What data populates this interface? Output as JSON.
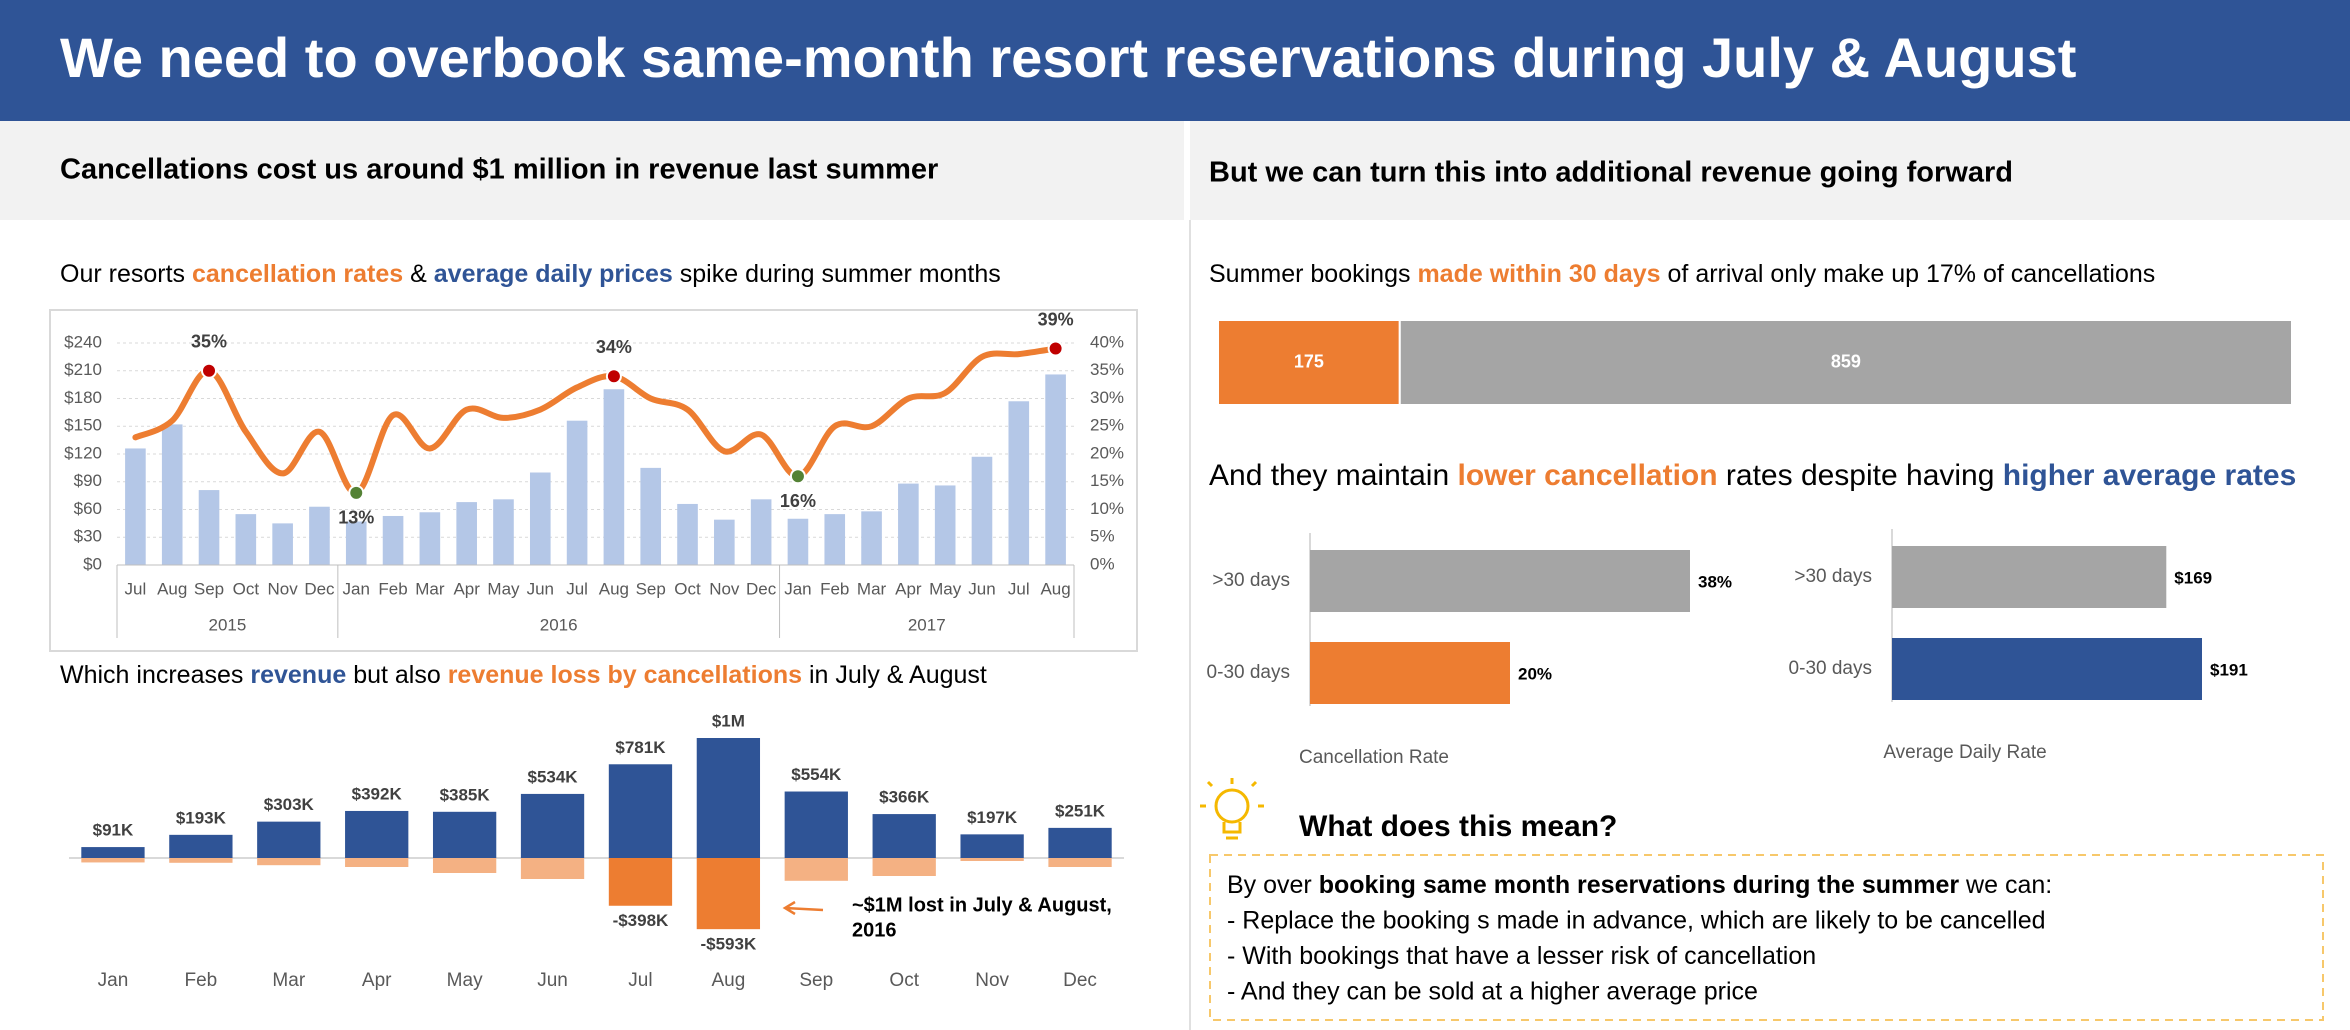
{
  "header": {
    "title": "We need to overbook same-month resort reservations during July & August"
  },
  "left": {
    "heading": "Cancellations cost us around $1 million in revenue last summer"
  },
  "right": {
    "heading": "But we can turn this into additional revenue going forward",
    "subtitle": [
      {
        "text": "And they maintain "
      },
      {
        "text": "lower cancellation",
        "color": "#ed7d31",
        "bold": true
      },
      {
        "text": " rates despite having "
      },
      {
        "text": "higher average rates",
        "color": "#2f5496",
        "bold": true
      }
    ]
  },
  "chart_data": [
    {
      "type": "combo",
      "title": [
        {
          "text": "Our resorts "
        },
        {
          "text": "cancellation rates",
          "color": "#ed7d31",
          "bold": true
        },
        {
          "text": " & "
        },
        {
          "text": "average daily prices",
          "color": "#2f5496",
          "bold": true
        },
        {
          "text": " spike during summer months"
        }
      ],
      "groups": [
        {
          "name": "2015",
          "categories": [
            "Jul",
            "Aug",
            "Sep",
            "Oct",
            "Nov",
            "Dec"
          ]
        },
        {
          "name": "2016",
          "categories": [
            "Jan",
            "Feb",
            "Mar",
            "Apr",
            "May",
            "Jun",
            "Jul",
            "Aug",
            "Sep",
            "Oct",
            "Nov",
            "Dec"
          ]
        },
        {
          "name": "2017",
          "categories": [
            "Jan",
            "Feb",
            "Mar",
            "Apr",
            "May",
            "Jun",
            "Jul",
            "Aug"
          ]
        }
      ],
      "series": [
        {
          "type": "bar",
          "color": "#b4c7e7",
          "values": [
            126,
            152,
            81,
            55,
            45,
            63,
            47,
            53,
            57,
            68,
            71,
            100,
            156,
            190,
            105,
            66,
            49,
            71,
            50,
            55,
            58,
            88,
            86,
            117,
            177,
            206
          ]
        },
        {
          "type": "line",
          "axis": "y2",
          "color": "#ed7d31",
          "values": [
            23,
            26,
            35,
            24,
            16.5,
            24,
            13,
            27,
            21,
            28,
            26.5,
            28,
            32,
            34,
            30,
            28,
            20.5,
            23.5,
            16,
            25,
            25,
            30,
            31,
            37.5,
            38,
            39
          ],
          "value_labels": [
            null,
            null,
            "35%",
            null,
            null,
            null,
            "13%",
            null,
            null,
            null,
            null,
            null,
            null,
            "34%",
            null,
            null,
            null,
            null,
            "16%",
            null,
            null,
            null,
            null,
            null,
            null,
            "39%"
          ],
          "marker_colors": [
            null,
            null,
            "#c00000",
            null,
            null,
            null,
            "#548235",
            null,
            null,
            null,
            null,
            null,
            null,
            "#c00000",
            null,
            null,
            null,
            null,
            "#548235",
            null,
            null,
            null,
            null,
            null,
            null,
            "#c00000"
          ]
        }
      ],
      "ylim": [
        0,
        240
      ],
      "yticks": [
        {
          "value": 0,
          "label": "$0"
        },
        {
          "value": 30,
          "label": "$30"
        },
        {
          "value": 60,
          "label": "$60"
        },
        {
          "value": 90,
          "label": "$90"
        },
        {
          "value": 120,
          "label": "$120"
        },
        {
          "value": 150,
          "label": "$150"
        },
        {
          "value": 180,
          "label": "$180"
        },
        {
          "value": 210,
          "label": "$210"
        },
        {
          "value": 240,
          "label": "$240"
        }
      ],
      "y2lim": [
        0,
        40
      ],
      "y2ticks": [
        {
          "value": 0,
          "label": "0%"
        },
        {
          "value": 5,
          "label": "5%"
        },
        {
          "value": 10,
          "label": "10%"
        },
        {
          "value": 15,
          "label": "15%"
        },
        {
          "value": 20,
          "label": "20%"
        },
        {
          "value": 25,
          "label": "25%"
        },
        {
          "value": 30,
          "label": "30%"
        },
        {
          "value": 35,
          "label": "35%"
        },
        {
          "value": 40,
          "label": "40%"
        }
      ],
      "grid": true
    },
    {
      "type": "bar",
      "title": [
        {
          "text": "Which increases "
        },
        {
          "text": "revenue",
          "color": "#2f5496",
          "bold": true
        },
        {
          "text": " but also "
        },
        {
          "text": "revenue loss by cancellations",
          "color": "#ed7d31",
          "bold": true
        },
        {
          "text": " in July & August"
        }
      ],
      "categories": [
        "Jan",
        "Feb",
        "Mar",
        "Apr",
        "May",
        "Jun",
        "Jul",
        "Aug",
        "Sep",
        "Oct",
        "Nov",
        "Dec"
      ],
      "series": [
        {
          "color": "#2f5496",
          "values": [
            91,
            193,
            303,
            392,
            385,
            534,
            781,
            1000,
            554,
            366,
            197,
            251
          ],
          "value_labels": [
            "$91K",
            "$193K",
            "$303K",
            "$392K",
            "$385K",
            "$534K",
            "$781K",
            "$1M",
            "$554K",
            "$366K",
            "$197K",
            "$251K"
          ]
        },
        {
          "colors": [
            "#f4b183",
            "#f4b183",
            "#f4b183",
            "#f4b183",
            "#f4b183",
            "#f4b183",
            "#ed7d31",
            "#ed7d31",
            "#f4b183",
            "#f4b183",
            "#f4b183",
            "#f4b183"
          ],
          "values": [
            -37,
            -40,
            -60,
            -75,
            -125,
            -175,
            -398,
            -593,
            -190,
            -150,
            -25,
            -75
          ],
          "value_labels": [
            null,
            null,
            null,
            null,
            null,
            null,
            "-$398K",
            "-$593K",
            null,
            null,
            null,
            null
          ]
        }
      ],
      "annotation": [
        "~$1M lost in July & August,",
        "2016"
      ]
    },
    {
      "type": "stacked-bar",
      "title": [
        {
          "text": "Summer bookings "
        },
        {
          "text": "made within 30 days",
          "color": "#ed7d31",
          "bold": true
        },
        {
          "text": " of arrival only make up 17% of cancellations"
        }
      ],
      "series": [
        {
          "color": "#ed7d31",
          "values": [
            175
          ]
        },
        {
          "color": "#a5a5a5",
          "values": [
            859
          ]
        }
      ]
    },
    {
      "type": "hbar",
      "categories": [
        ">30 days",
        "0-30 days"
      ],
      "values": [
        38,
        20
      ],
      "value_labels": [
        "38%",
        "20%"
      ],
      "colors": [
        "#a5a5a5",
        "#ed7d31"
      ],
      "xlabel": "Cancellation Rate"
    },
    {
      "type": "hbar",
      "categories": [
        ">30 days",
        "0-30 days"
      ],
      "values": [
        169,
        191
      ],
      "value_labels": [
        "$169",
        "$191"
      ],
      "colors": [
        "#a5a5a5",
        "#2f5496"
      ],
      "xlabel": "Average Daily Rate"
    }
  ],
  "insight": {
    "title": "What does this mean?",
    "lines": [
      [
        {
          "text": "By over "
        },
        {
          "text": "booking same month reservations during the summer",
          "bold": true
        },
        {
          "text": " we can:"
        }
      ],
      [
        {
          "text": "- Replace the booking s made in advance, which are likely to be cancelled"
        }
      ],
      [
        {
          "text": "- With bookings that have a lesser risk of cancellation"
        }
      ],
      [
        {
          "text": "- And they can be sold at a higher average price"
        }
      ]
    ]
  }
}
